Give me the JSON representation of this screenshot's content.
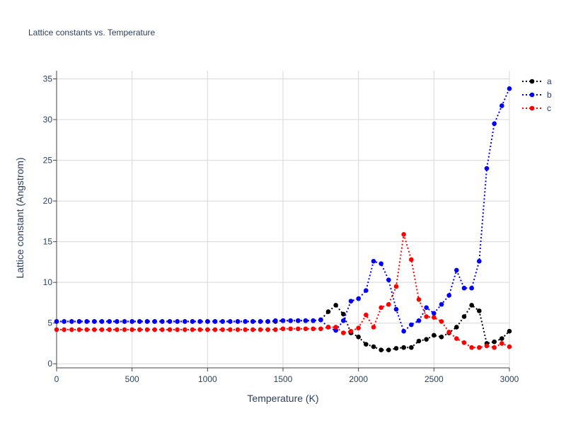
{
  "chart_data": {
    "type": "line",
    "title": "Lattice constants vs. Temperature",
    "xlabel": "Temperature (K)",
    "ylabel": "Lattice constant (Angstrom)",
    "xlim": [
      0,
      3000
    ],
    "ylim": [
      -0.5,
      36
    ],
    "xticks": [
      0,
      500,
      1000,
      1500,
      2000,
      2500,
      3000
    ],
    "yticks": [
      0,
      5,
      10,
      15,
      20,
      25,
      30,
      35
    ],
    "grid": true,
    "legend": "top-right",
    "x": [
      0,
      50,
      100,
      150,
      200,
      250,
      300,
      350,
      400,
      450,
      500,
      550,
      600,
      650,
      700,
      750,
      800,
      850,
      900,
      950,
      1000,
      1050,
      1100,
      1150,
      1200,
      1250,
      1300,
      1350,
      1400,
      1450,
      1500,
      1550,
      1600,
      1650,
      1700,
      1750,
      1800,
      1850,
      1900,
      1950,
      2000,
      2050,
      2100,
      2150,
      2200,
      2250,
      2300,
      2350,
      2400,
      2450,
      2500,
      2550,
      2600,
      2650,
      2700,
      2750,
      2800,
      2850,
      2900,
      2950,
      3000
    ],
    "series": [
      {
        "name": "a",
        "color": "#000000",
        "values": [
          5.2,
          5.2,
          5.2,
          5.2,
          5.2,
          5.2,
          5.2,
          5.2,
          5.2,
          5.2,
          5.2,
          5.2,
          5.2,
          5.2,
          5.2,
          5.2,
          5.2,
          5.2,
          5.2,
          5.2,
          5.2,
          5.2,
          5.2,
          5.2,
          5.2,
          5.2,
          5.2,
          5.2,
          5.2,
          5.2,
          5.3,
          5.3,
          5.3,
          5.3,
          5.3,
          5.4,
          6.4,
          7.2,
          6.1,
          3.8,
          3.3,
          2.4,
          2.1,
          1.7,
          1.7,
          1.9,
          2.0,
          2.0,
          2.8,
          3.0,
          3.5,
          3.3,
          3.8,
          4.5,
          5.8,
          7.2,
          6.5,
          2.5,
          2.7,
          3.1,
          4.0
        ]
      },
      {
        "name": "b",
        "color": "#0000ff",
        "values": [
          5.2,
          5.2,
          5.2,
          5.2,
          5.2,
          5.2,
          5.2,
          5.2,
          5.2,
          5.2,
          5.2,
          5.2,
          5.2,
          5.2,
          5.2,
          5.2,
          5.2,
          5.2,
          5.2,
          5.2,
          5.2,
          5.2,
          5.2,
          5.2,
          5.2,
          5.2,
          5.2,
          5.2,
          5.2,
          5.3,
          5.3,
          5.3,
          5.3,
          5.3,
          5.3,
          5.4,
          4.5,
          4.1,
          5.3,
          7.7,
          8.0,
          9.0,
          12.6,
          12.3,
          10.3,
          6.7,
          4.0,
          4.8,
          5.3,
          6.9,
          6.2,
          7.3,
          8.4,
          11.5,
          9.3,
          9.3,
          12.6,
          24.0,
          29.5,
          31.7,
          33.8
        ]
      },
      {
        "name": "c",
        "color": "#ff0000",
        "values": [
          4.2,
          4.2,
          4.2,
          4.2,
          4.2,
          4.2,
          4.2,
          4.2,
          4.2,
          4.2,
          4.2,
          4.2,
          4.2,
          4.2,
          4.2,
          4.2,
          4.2,
          4.2,
          4.2,
          4.2,
          4.2,
          4.2,
          4.2,
          4.2,
          4.2,
          4.2,
          4.2,
          4.2,
          4.2,
          4.2,
          4.3,
          4.3,
          4.3,
          4.3,
          4.3,
          4.3,
          4.5,
          4.5,
          3.8,
          4.0,
          4.4,
          6.0,
          4.5,
          6.9,
          7.3,
          9.5,
          15.9,
          12.8,
          7.9,
          5.8,
          5.7,
          5.2,
          3.9,
          3.1,
          2.6,
          2.0,
          2.0,
          2.2,
          2.0,
          2.5,
          2.1
        ]
      }
    ]
  }
}
